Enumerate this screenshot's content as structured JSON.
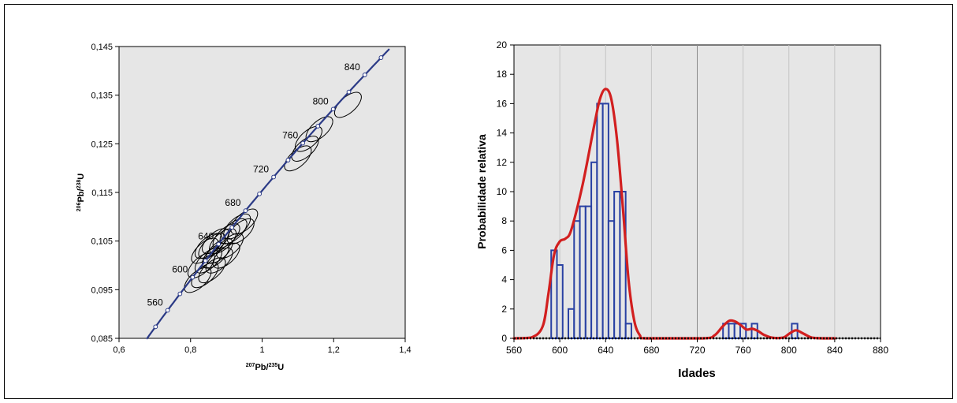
{
  "chart_data": [
    {
      "type": "scatter",
      "subtype": "concordia",
      "xlabel": "207Pb/235U",
      "ylabel": "206Pb/238U",
      "xlim": [
        0.6,
        1.4
      ],
      "ylim": [
        0.085,
        0.145
      ],
      "x_ticks": [
        "0,6",
        "0,8",
        "1",
        "1,2",
        "1,4"
      ],
      "y_ticks": [
        "0,085",
        "0,095",
        "0,105",
        "0,115",
        "0,125",
        "0,135",
        "0,145"
      ],
      "concordia_age_labels": [
        "560",
        "600",
        "640",
        "680",
        "720",
        "760",
        "800",
        "840"
      ],
      "error_ellipses": [
        {
          "x": 0.82,
          "y": 0.097
        },
        {
          "x": 0.84,
          "y": 0.098
        },
        {
          "x": 0.86,
          "y": 0.099
        },
        {
          "x": 0.83,
          "y": 0.1
        },
        {
          "x": 0.85,
          "y": 0.101
        },
        {
          "x": 0.87,
          "y": 0.102
        },
        {
          "x": 0.84,
          "y": 0.103
        },
        {
          "x": 0.86,
          "y": 0.104
        },
        {
          "x": 0.88,
          "y": 0.103
        },
        {
          "x": 0.89,
          "y": 0.105
        },
        {
          "x": 0.87,
          "y": 0.105
        },
        {
          "x": 0.9,
          "y": 0.106
        },
        {
          "x": 0.92,
          "y": 0.107
        },
        {
          "x": 0.91,
          "y": 0.104
        },
        {
          "x": 0.93,
          "y": 0.108
        },
        {
          "x": 0.88,
          "y": 0.101
        },
        {
          "x": 0.94,
          "y": 0.107
        },
        {
          "x": 0.95,
          "y": 0.109
        },
        {
          "x": 0.9,
          "y": 0.102
        },
        {
          "x": 0.85,
          "y": 0.104
        },
        {
          "x": 1.1,
          "y": 0.122
        },
        {
          "x": 1.12,
          "y": 0.124
        },
        {
          "x": 1.13,
          "y": 0.126
        },
        {
          "x": 1.16,
          "y": 0.128
        },
        {
          "x": 1.24,
          "y": 0.133
        }
      ],
      "colors": {
        "plot_bg": "#e6e6e6",
        "concordia": "#2b3a86",
        "ellipse": "#000000"
      }
    },
    {
      "type": "bar",
      "subtype": "histogram_with_probability_curve",
      "xlabel": "Idades",
      "ylabel": "Probabilidade relativa",
      "xlim": [
        560,
        880
      ],
      "ylim": [
        0,
        20
      ],
      "x_ticks": [
        "560",
        "600",
        "640",
        "680",
        "720",
        "760",
        "800",
        "840",
        "880"
      ],
      "y_ticks": [
        "0",
        "2",
        "4",
        "6",
        "8",
        "10",
        "12",
        "14",
        "16",
        "18",
        "20"
      ],
      "bin_width": 5,
      "bins": [
        {
          "x": 595,
          "count": 6
        },
        {
          "x": 600,
          "count": 5
        },
        {
          "x": 605,
          "count": 0
        },
        {
          "x": 610,
          "count": 2
        },
        {
          "x": 615,
          "count": 8
        },
        {
          "x": 620,
          "count": 9
        },
        {
          "x": 625,
          "count": 9
        },
        {
          "x": 630,
          "count": 12
        },
        {
          "x": 635,
          "count": 16
        },
        {
          "x": 640,
          "count": 16
        },
        {
          "x": 645,
          "count": 8
        },
        {
          "x": 650,
          "count": 10
        },
        {
          "x": 655,
          "count": 10
        },
        {
          "x": 660,
          "count": 1
        },
        {
          "x": 745,
          "count": 1
        },
        {
          "x": 750,
          "count": 1
        },
        {
          "x": 755,
          "count": 1
        },
        {
          "x": 760,
          "count": 1
        },
        {
          "x": 770,
          "count": 1
        },
        {
          "x": 805,
          "count": 1
        }
      ],
      "curve": [
        [
          560,
          0
        ],
        [
          575,
          0.05
        ],
        [
          585,
          0.8
        ],
        [
          590,
          3.0
        ],
        [
          595,
          5.7
        ],
        [
          600,
          6.6
        ],
        [
          605,
          6.8
        ],
        [
          610,
          7.4
        ],
        [
          620,
          10.5
        ],
        [
          630,
          14.5
        ],
        [
          635,
          16.3
        ],
        [
          640,
          17.0
        ],
        [
          645,
          16.3
        ],
        [
          650,
          13.5
        ],
        [
          655,
          9.0
        ],
        [
          660,
          4.0
        ],
        [
          665,
          1.2
        ],
        [
          670,
          0.2
        ],
        [
          675,
          0
        ],
        [
          725,
          0
        ],
        [
          735,
          0.2
        ],
        [
          742,
          0.8
        ],
        [
          748,
          1.2
        ],
        [
          753,
          1.15
        ],
        [
          758,
          0.9
        ],
        [
          763,
          0.6
        ],
        [
          768,
          0.65
        ],
        [
          773,
          0.5
        ],
        [
          778,
          0.25
        ],
        [
          785,
          0.05
        ],
        [
          795,
          0.05
        ],
        [
          800,
          0.3
        ],
        [
          806,
          0.55
        ],
        [
          812,
          0.35
        ],
        [
          820,
          0.05
        ],
        [
          830,
          0
        ],
        [
          840,
          0
        ]
      ],
      "colors": {
        "plot_bg": "#e6e6e6",
        "bar_edge": "#2941a3",
        "curve": "#d21f1f"
      }
    }
  ]
}
